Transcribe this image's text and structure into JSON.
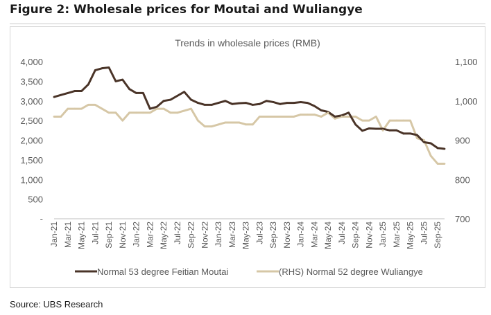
{
  "figure": {
    "title": "Figure 2: Wholesale prices for Moutai and Wuliangye",
    "source": "Source: UBS Research"
  },
  "colors": {
    "moutai": "#4a3428",
    "wuliangye": "#d6c7a6",
    "axis_text": "#595959",
    "axis_line": "#bfbfbf"
  },
  "chart_data": {
    "type": "line",
    "title": "Trends in wholesale prices (RMB)",
    "x": [
      "Jan-21",
      "Feb-21",
      "Mar-21",
      "Apr-21",
      "May-21",
      "Jun-21",
      "Jul-21",
      "Aug-21",
      "Sep-21",
      "Oct-21",
      "Nov-21",
      "Dec-21",
      "Jan-22",
      "Feb-22",
      "Mar-22",
      "Apr-22",
      "May-22",
      "Jun-22",
      "Jul-22",
      "Aug-22",
      "Sep-22",
      "Oct-22",
      "Nov-22",
      "Dec-22",
      "Jan-23",
      "Feb-23",
      "Mar-23",
      "Apr-23",
      "May-23",
      "Jun-23",
      "Jul-23",
      "Aug-23",
      "Sep-23",
      "Oct-23",
      "Nov-23",
      "Dec-23",
      "Jan-24",
      "Feb-24",
      "Mar-24",
      "Apr-24",
      "May-24",
      "Jun-24",
      "Jul-24",
      "Aug-24",
      "Sep-24",
      "Oct-24",
      "Nov-24",
      "Dec-24",
      "Jan-25",
      "Feb-25",
      "Mar-25",
      "Apr-25",
      "May-25",
      "Jun-25",
      "Jul-25",
      "Aug-25",
      "Sep-25",
      "Oct-25"
    ],
    "x_tick_labels": [
      "Jan-21",
      "Mar-21",
      "May-21",
      "Jul-21",
      "Sep-21",
      "Nov-21",
      "Jan-22",
      "Mar-22",
      "May-22",
      "Jul-22",
      "Sep-22",
      "Nov-22",
      "Jan-23",
      "Mar-23",
      "May-23",
      "Jul-23",
      "Sep-23",
      "Nov-23",
      "Jan-24",
      "Mar-24",
      "May-24",
      "Jul-24",
      "Sep-24",
      "Nov-24",
      "Jan-25",
      "Mar-25",
      "May-25",
      "Jul-25",
      "Sep-25"
    ],
    "y_left": {
      "range": [
        0,
        4000
      ],
      "tick_labels": [
        "-",
        "500",
        "1,000",
        "1,500",
        "2,000",
        "2,500",
        "3,000",
        "3,500",
        "4,000"
      ]
    },
    "y_right": {
      "range": [
        700,
        1100
      ],
      "tick_labels": [
        "700",
        "800",
        "900",
        "1,000",
        "1,100"
      ]
    },
    "series": [
      {
        "name": "Normal 53 degree Feitian Moutai",
        "axis": "left",
        "values": [
          3100,
          3150,
          3200,
          3250,
          3250,
          3420,
          3780,
          3830,
          3850,
          3500,
          3540,
          3300,
          3200,
          3200,
          2800,
          2850,
          3000,
          3030,
          3130,
          3230,
          3030,
          2950,
          2900,
          2900,
          2950,
          3000,
          2920,
          2940,
          2950,
          2900,
          2920,
          3000,
          2970,
          2920,
          2950,
          2950,
          2970,
          2950,
          2870,
          2760,
          2720,
          2600,
          2630,
          2700,
          2400,
          2240,
          2300,
          2290,
          2290,
          2250,
          2250,
          2170,
          2170,
          2130,
          1950,
          1920,
          1800,
          1780
        ]
      },
      {
        "name": "(RHS) Normal 52 degree Wuliangye",
        "axis": "right",
        "values": [
          960,
          960,
          980,
          980,
          980,
          990,
          990,
          980,
          970,
          970,
          950,
          970,
          970,
          970,
          970,
          980,
          980,
          970,
          970,
          975,
          980,
          950,
          935,
          935,
          940,
          945,
          945,
          945,
          940,
          940,
          960,
          960,
          960,
          960,
          960,
          960,
          965,
          965,
          965,
          960,
          970,
          955,
          960,
          960,
          960,
          950,
          950,
          960,
          925,
          950,
          950,
          950,
          950,
          905,
          900,
          860,
          840,
          840
        ]
      }
    ],
    "legend": [
      "Normal 53 degree Feitian Moutai",
      "(RHS) Normal 52 degree Wuliangye"
    ],
    "legend_position": "bottom",
    "grid": false
  }
}
